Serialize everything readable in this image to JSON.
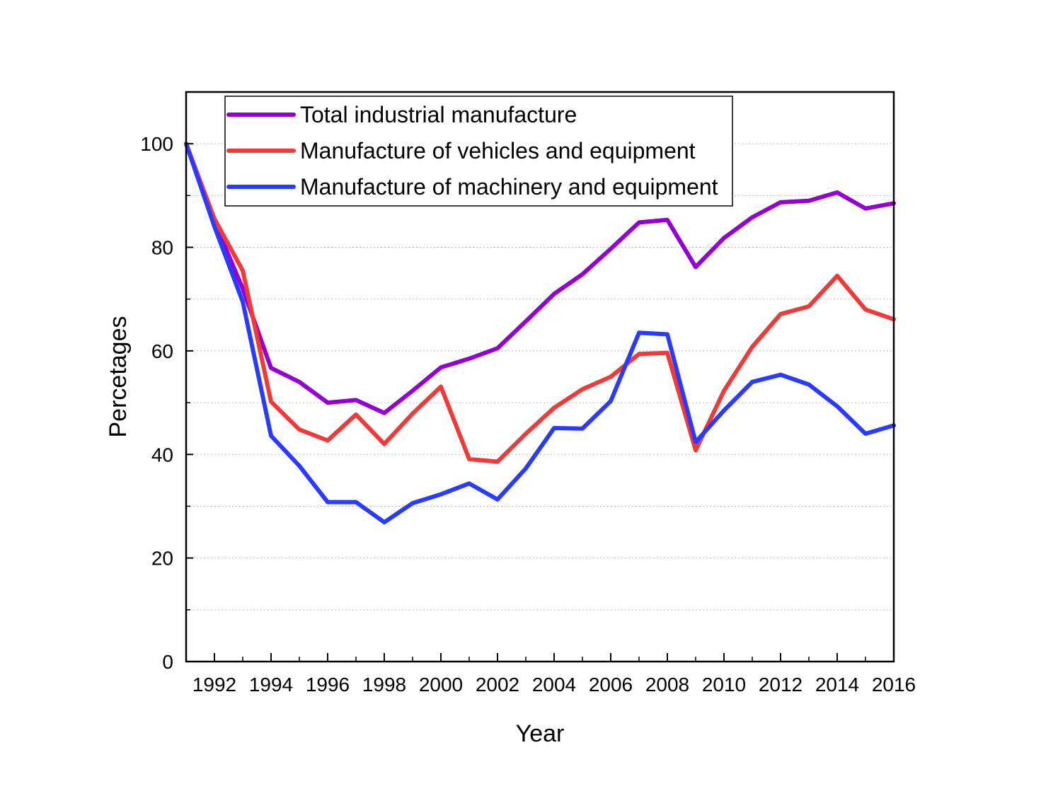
{
  "chart_data": {
    "type": "line",
    "title": "",
    "xlabel": "Year",
    "ylabel": "Percetages",
    "xlim": [
      1991,
      2016
    ],
    "ylim": [
      0,
      110
    ],
    "x_ticks": [
      1992,
      1994,
      1996,
      1998,
      2000,
      2002,
      2004,
      2006,
      2008,
      2010,
      2012,
      2014,
      2016
    ],
    "x_tick_labels": [
      "1992",
      "1994",
      "1996",
      "1998",
      "2000",
      "2002",
      "2004",
      "2006",
      "2008",
      "2010",
      "2012",
      "2014",
      "2016"
    ],
    "y_ticks": [
      0,
      20,
      40,
      60,
      80,
      100
    ],
    "y_tick_labels": [
      "0",
      "20",
      "40",
      "60",
      "80",
      "100"
    ],
    "y_minor_ticks": [
      10,
      30,
      50,
      70,
      90
    ],
    "grid": "horizontal dotted",
    "legend_position": "top-left",
    "x": [
      1991,
      1992,
      1993,
      1994,
      1995,
      1996,
      1997,
      1998,
      1999,
      2000,
      2001,
      2002,
      2003,
      2004,
      2005,
      2006,
      2007,
      2008,
      2009,
      2010,
      2011,
      2012,
      2013,
      2014,
      2015,
      2016
    ],
    "series": [
      {
        "name": "Total industrial manufacture",
        "color": "#9400D3",
        "values": [
          100,
          85,
          72,
          56.7,
          54,
          50,
          50.5,
          48,
          52.3,
          56.8,
          58.5,
          60.5,
          65.7,
          71,
          74.8,
          79.7,
          84.8,
          85.3,
          76.2,
          81.8,
          85.8,
          88.7,
          89,
          90.6,
          87.5,
          88.5
        ]
      },
      {
        "name": "Manufacture of vehicles and equipment",
        "color": "#F03A3A",
        "values": [
          100,
          85.5,
          75.5,
          50.2,
          44.8,
          42.7,
          47.7,
          42,
          47.9,
          53.1,
          39.1,
          38.6,
          44,
          49,
          52.6,
          55,
          59.4,
          59.6,
          40.8,
          52.3,
          60.8,
          67.1,
          68.6,
          74.5,
          68,
          66.1
        ]
      },
      {
        "name": "Manufacture of machinery and equipment",
        "color": "#2B3AFF",
        "values": [
          100,
          84,
          69.5,
          43.6,
          37.8,
          30.8,
          30.8,
          26.9,
          30.6,
          32.3,
          34.4,
          31.3,
          37.3,
          45.1,
          45,
          50.3,
          63.5,
          63.2,
          42.4,
          48.5,
          54,
          55.4,
          53.5,
          49.3,
          44,
          45.6
        ]
      }
    ]
  }
}
